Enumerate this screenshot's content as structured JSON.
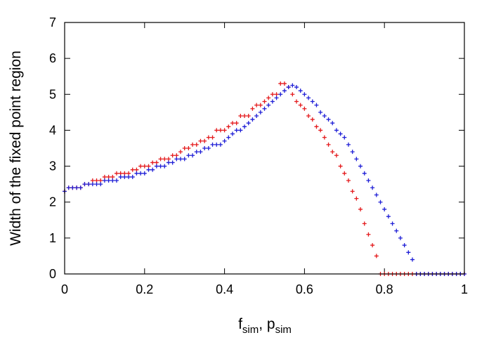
{
  "chart_data": {
    "type": "scatter",
    "xlabel": {
      "main_1": "f",
      "sub_1": "sim",
      "sep": ", ",
      "main_2": "p",
      "sub_2": "sim"
    },
    "ylabel": "Width of the fixed point region",
    "xlim": [
      0,
      1
    ],
    "ylim": [
      0,
      7
    ],
    "xticks": [
      "0",
      "0.2",
      "0.4",
      "0.6",
      "0.8",
      "1"
    ],
    "yticks": [
      "0",
      "1",
      "2",
      "3",
      "4",
      "5",
      "6",
      "7"
    ],
    "grid": false,
    "legend": "none",
    "series": [
      {
        "color": "#e41a1c",
        "marker": "plus",
        "x": [
          0.0,
          0.01,
          0.02,
          0.03,
          0.04,
          0.05,
          0.06,
          0.07,
          0.08,
          0.09,
          0.1,
          0.11,
          0.12,
          0.13,
          0.14,
          0.15,
          0.16,
          0.17,
          0.18,
          0.19,
          0.2,
          0.21,
          0.22,
          0.23,
          0.24,
          0.25,
          0.26,
          0.27,
          0.28,
          0.29,
          0.3,
          0.31,
          0.32,
          0.33,
          0.34,
          0.35,
          0.36,
          0.37,
          0.38,
          0.39,
          0.4,
          0.41,
          0.42,
          0.43,
          0.44,
          0.45,
          0.46,
          0.47,
          0.48,
          0.49,
          0.5,
          0.51,
          0.52,
          0.53,
          0.54,
          0.55,
          0.56,
          0.57,
          0.58,
          0.59,
          0.6,
          0.61,
          0.62,
          0.63,
          0.64,
          0.65,
          0.66,
          0.67,
          0.68,
          0.69,
          0.7,
          0.71,
          0.72,
          0.73,
          0.74,
          0.75,
          0.76,
          0.77,
          0.78,
          0.79,
          0.8,
          0.81,
          0.82,
          0.83,
          0.84,
          0.85,
          0.86,
          0.87,
          0.88,
          0.89,
          0.9,
          0.91,
          0.92,
          0.93,
          0.94,
          0.95,
          0.96,
          0.97,
          0.98,
          0.99,
          1.0
        ],
        "y": [
          2.3,
          2.4,
          2.4,
          2.4,
          2.4,
          2.5,
          2.5,
          2.6,
          2.6,
          2.6,
          2.7,
          2.7,
          2.7,
          2.8,
          2.8,
          2.8,
          2.8,
          2.9,
          2.9,
          3.0,
          3.0,
          3.0,
          3.1,
          3.1,
          3.2,
          3.2,
          3.2,
          3.3,
          3.3,
          3.4,
          3.5,
          3.5,
          3.6,
          3.6,
          3.7,
          3.7,
          3.8,
          3.8,
          4.0,
          4.0,
          4.0,
          4.1,
          4.2,
          4.2,
          4.4,
          4.4,
          4.4,
          4.6,
          4.7,
          4.7,
          4.8,
          4.9,
          5.0,
          5.0,
          5.3,
          5.3,
          5.2,
          5.0,
          4.8,
          4.7,
          4.6,
          4.4,
          4.3,
          4.1,
          4.0,
          3.8,
          3.6,
          3.4,
          3.3,
          3.0,
          2.8,
          2.6,
          2.3,
          2.1,
          1.8,
          1.4,
          1.1,
          0.8,
          0.5,
          0.0,
          0.0,
          0.0,
          0.0,
          0.0,
          0.0,
          0.0,
          0.0,
          0.0,
          0.0,
          0.0,
          0.0,
          0.0,
          0.0,
          0.0,
          0.0,
          0.0,
          0.0,
          0.0,
          0.0,
          0.0,
          0.0
        ]
      },
      {
        "color": "#1f1fd6",
        "marker": "plus",
        "x": [
          0.0,
          0.01,
          0.02,
          0.03,
          0.04,
          0.05,
          0.06,
          0.07,
          0.08,
          0.09,
          0.1,
          0.11,
          0.12,
          0.13,
          0.14,
          0.15,
          0.16,
          0.17,
          0.18,
          0.19,
          0.2,
          0.21,
          0.22,
          0.23,
          0.24,
          0.25,
          0.26,
          0.27,
          0.28,
          0.29,
          0.3,
          0.31,
          0.32,
          0.33,
          0.34,
          0.35,
          0.36,
          0.37,
          0.38,
          0.39,
          0.4,
          0.41,
          0.42,
          0.43,
          0.44,
          0.45,
          0.46,
          0.47,
          0.48,
          0.49,
          0.5,
          0.51,
          0.52,
          0.53,
          0.54,
          0.55,
          0.56,
          0.57,
          0.58,
          0.59,
          0.6,
          0.61,
          0.62,
          0.63,
          0.64,
          0.65,
          0.66,
          0.67,
          0.68,
          0.69,
          0.7,
          0.71,
          0.72,
          0.73,
          0.74,
          0.75,
          0.76,
          0.77,
          0.78,
          0.79,
          0.8,
          0.81,
          0.82,
          0.83,
          0.84,
          0.85,
          0.86,
          0.87,
          0.88,
          0.89,
          0.9,
          0.91,
          0.92,
          0.93,
          0.94,
          0.95,
          0.96,
          0.97,
          0.98,
          0.99,
          1.0
        ],
        "y": [
          2.3,
          2.4,
          2.4,
          2.4,
          2.4,
          2.5,
          2.5,
          2.5,
          2.5,
          2.5,
          2.6,
          2.6,
          2.6,
          2.6,
          2.7,
          2.7,
          2.7,
          2.7,
          2.8,
          2.8,
          2.8,
          2.9,
          2.9,
          3.0,
          3.0,
          3.0,
          3.1,
          3.1,
          3.2,
          3.2,
          3.2,
          3.3,
          3.3,
          3.4,
          3.4,
          3.5,
          3.5,
          3.6,
          3.6,
          3.6,
          3.7,
          3.8,
          3.9,
          4.0,
          4.0,
          4.1,
          4.2,
          4.3,
          4.4,
          4.5,
          4.6,
          4.7,
          4.8,
          4.9,
          5.0,
          5.1,
          5.2,
          5.25,
          5.2,
          5.1,
          5.0,
          4.9,
          4.8,
          4.7,
          4.5,
          4.4,
          4.3,
          4.2,
          4.0,
          3.9,
          3.8,
          3.6,
          3.4,
          3.2,
          3.0,
          2.8,
          2.6,
          2.4,
          2.2,
          2.0,
          1.8,
          1.6,
          1.4,
          1.2,
          1.0,
          0.8,
          0.6,
          0.4,
          0.0,
          0.0,
          0.0,
          0.0,
          0.0,
          0.0,
          0.0,
          0.0,
          0.0,
          0.0,
          0.0,
          0.0,
          0.0
        ]
      }
    ]
  }
}
